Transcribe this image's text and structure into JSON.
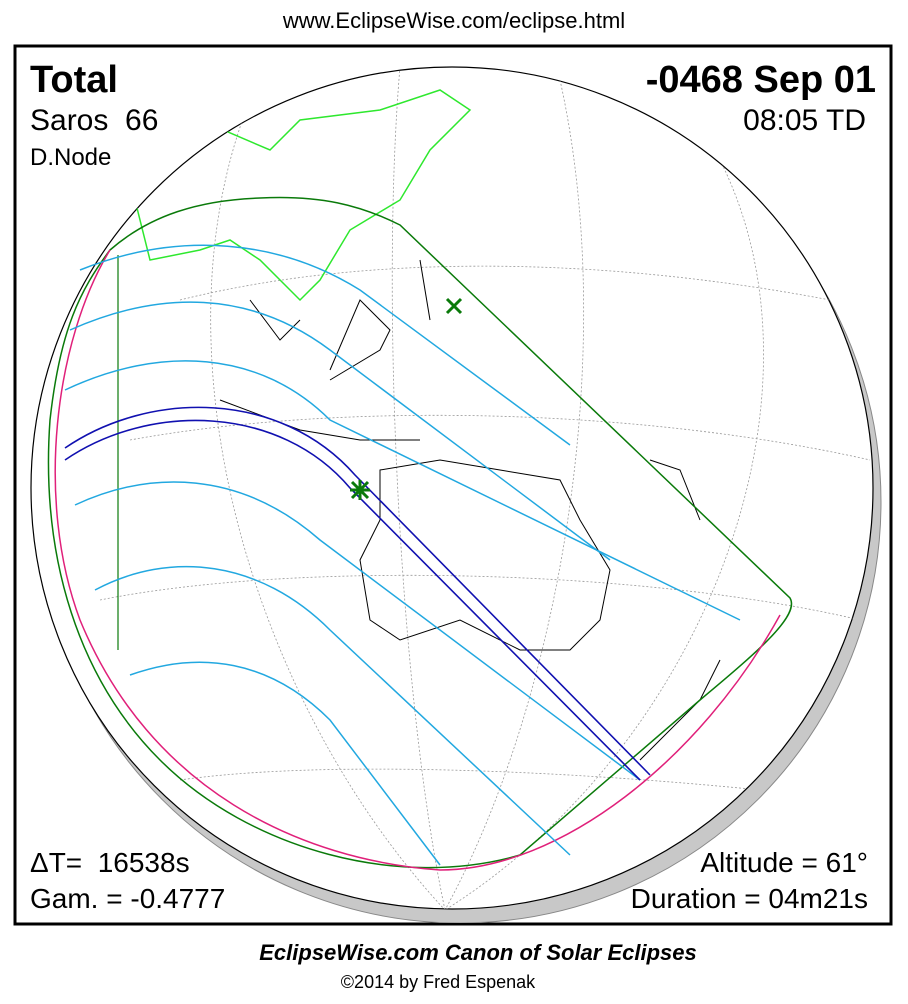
{
  "header": {
    "url": "www.EclipseWise.com/eclipse.html"
  },
  "info": {
    "type": "Total",
    "saros": "Saros  66",
    "node": "D.Node",
    "date": "-0468 Sep 01",
    "time": "08:05 TD",
    "delta_t": "ΔT=  16538s",
    "gamma": "Gam. = -0.4777",
    "altitude": "Altitude = 61°",
    "duration": "Duration = 04m21s"
  },
  "footer": {
    "title": "EclipseWise.com Canon of Solar Eclipses",
    "credit": "©2014 by Fred Espenak"
  }
}
